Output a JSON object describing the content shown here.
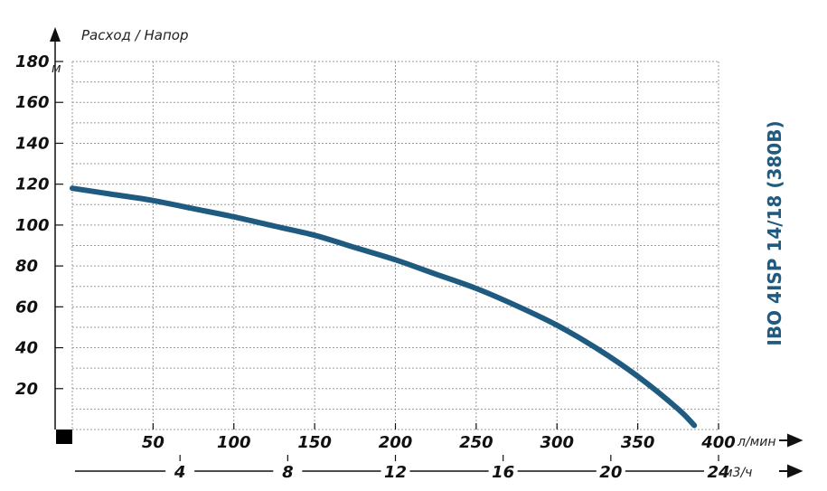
{
  "chart_data": {
    "type": "line",
    "title": "",
    "model_label": "IBO 4ISP 14/18 (380В)",
    "y_title": "Расход / Напор",
    "y_unit": "м",
    "ylim": [
      0,
      180
    ],
    "y_ticks": [
      "20",
      "40",
      "60",
      "80",
      "100",
      "120",
      "140",
      "160",
      "180"
    ],
    "x_primary": {
      "unit": "л/мин",
      "range": [
        0,
        400
      ],
      "ticks": [
        "50",
        "100",
        "150",
        "200",
        "250",
        "300",
        "350",
        "400"
      ]
    },
    "x_secondary": {
      "unit": "м3/ч",
      "range": [
        0,
        24
      ],
      "ticks": [
        "4",
        "8",
        "12",
        "16",
        "20",
        "24"
      ]
    },
    "grid": true,
    "series": [
      {
        "name": "",
        "color": "#1f5b80",
        "x": [
          0,
          25,
          50,
          75,
          100,
          125,
          150,
          175,
          200,
          225,
          250,
          275,
          300,
          325,
          350,
          375,
          385
        ],
        "y": [
          118,
          115,
          112,
          108,
          104,
          99.5,
          95,
          89,
          83,
          76,
          69,
          60.5,
          51,
          39.5,
          26,
          10,
          2
        ]
      }
    ]
  },
  "colors": {
    "curve": "#1f5b80",
    "grid": "#9a9a9a",
    "text": "#111111",
    "model_label": "#1f5b80"
  }
}
